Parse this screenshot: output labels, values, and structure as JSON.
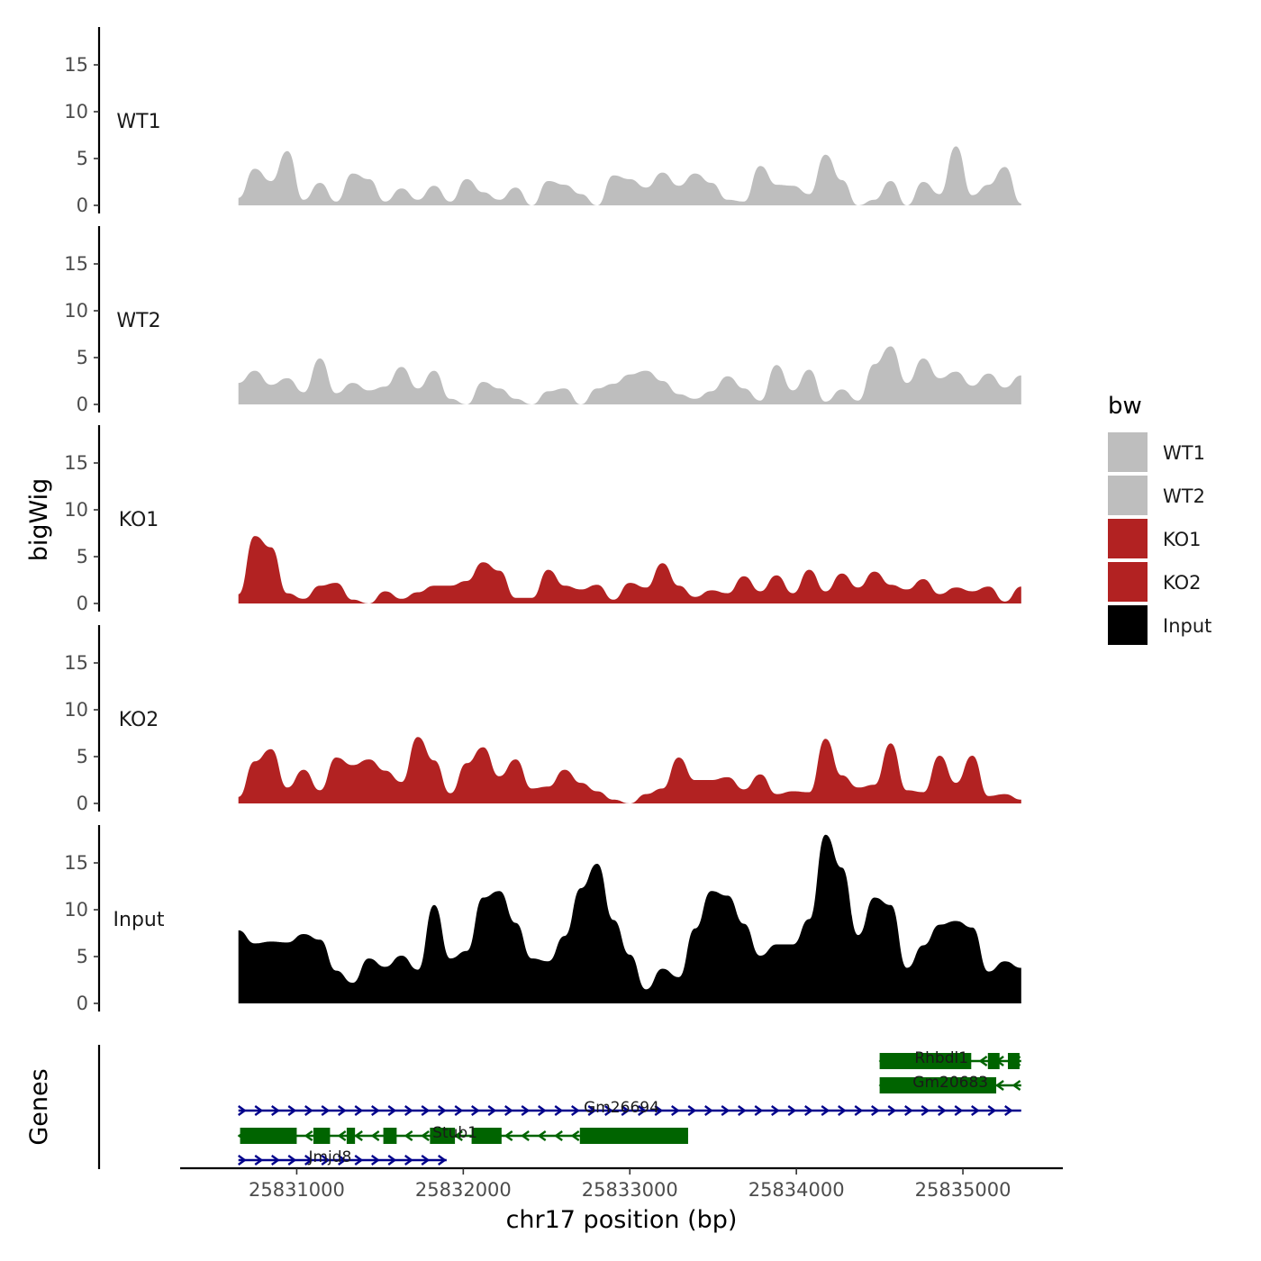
{
  "chart_data": {
    "type": "area",
    "chromosome": "chr17",
    "xlabel": "chr17 position (bp)",
    "ylabel": "bigWig",
    "genes_axis_label": "Genes",
    "xlim": [
      25830300,
      25835600
    ],
    "ylim": [
      0,
      19
    ],
    "x_ticks": [
      25831000,
      25832000,
      25833000,
      25834000,
      25835000
    ],
    "x_tick_labels": [
      "25831000",
      "25832000",
      "25833000",
      "25834000",
      "25835000"
    ],
    "y_ticks": [
      0,
      5,
      10,
      15
    ],
    "y_tick_labels": [
      "0",
      "5",
      "10",
      "15"
    ],
    "x_start": 25830650,
    "x_end": 25835350,
    "legend": {
      "title": "bw",
      "position": "right"
    },
    "series": [
      {
        "name": "WT1",
        "color": "#BEBEBE",
        "values": [
          0.8,
          3.9,
          2.6,
          5.8,
          0.6,
          2.4,
          0.4,
          3.4,
          2.8,
          0.4,
          1.8,
          0.6,
          2.1,
          0.4,
          2.8,
          1.4,
          0.6,
          1.9,
          0,
          2.6,
          2.2,
          1.2,
          0,
          3.2,
          2.8,
          1.9,
          3.5,
          2.1,
          3.4,
          2.4,
          0.6,
          0.4,
          4.2,
          2.2,
          2.1,
          1.2,
          5.4,
          2.7,
          0,
          0.6,
          2.6,
          0,
          2.5,
          1.2,
          6.3,
          1.1,
          2.2,
          4.1,
          0.2
        ]
      },
      {
        "name": "WT2",
        "color": "#BEBEBE",
        "values": [
          2.3,
          3.6,
          2.1,
          2.8,
          1.3,
          4.9,
          1.2,
          2.3,
          1.5,
          1.9,
          4.0,
          1.7,
          3.6,
          0.6,
          0,
          2.4,
          1.7,
          0.6,
          0,
          1.4,
          1.7,
          0,
          1.7,
          2.2,
          3.2,
          3.6,
          2.5,
          1.1,
          0.6,
          1.4,
          3.0,
          1.7,
          0.4,
          4.2,
          1.5,
          3.7,
          0.3,
          1.6,
          0.4,
          4.3,
          6.2,
          2.3,
          4.9,
          2.8,
          3.5,
          2.0,
          3.3,
          1.8,
          3.1
        ]
      },
      {
        "name": "KO1",
        "color": "#B22222",
        "values": [
          1.0,
          7.2,
          6.0,
          1.1,
          0.5,
          1.9,
          2.2,
          0.4,
          0,
          1.3,
          0.5,
          1.2,
          1.9,
          1.9,
          2.4,
          4.4,
          3.5,
          0.6,
          0.6,
          3.6,
          1.9,
          1.5,
          2.0,
          0.4,
          2.2,
          1.7,
          4.3,
          1.9,
          0.7,
          1.4,
          1.1,
          2.9,
          1.3,
          3.0,
          1.1,
          3.6,
          1.3,
          3.2,
          1.7,
          3.4,
          2.0,
          1.5,
          2.6,
          1.0,
          1.7,
          1.3,
          1.8,
          0.2,
          1.8
        ]
      },
      {
        "name": "KO2",
        "color": "#B22222",
        "values": [
          0.7,
          4.5,
          5.8,
          1.7,
          3.6,
          1.4,
          4.9,
          4.1,
          4.7,
          3.5,
          2.3,
          7.1,
          4.6,
          1.1,
          4.3,
          6.0,
          2.9,
          4.7,
          1.6,
          1.8,
          3.6,
          2.2,
          1.3,
          0.4,
          0,
          1.0,
          1.6,
          4.9,
          2.5,
          2.5,
          2.8,
          1.5,
          3.1,
          1.0,
          1.3,
          1.2,
          6.9,
          3.0,
          1.7,
          2.0,
          6.4,
          1.4,
          1.2,
          5.1,
          2.2,
          5.1,
          0.8,
          1.0,
          0.4
        ]
      },
      {
        "name": "Input",
        "color": "#000000",
        "values": [
          7.8,
          6.4,
          6.6,
          6.5,
          7.4,
          6.8,
          3.5,
          2.2,
          4.8,
          3.9,
          5.1,
          3.6,
          10.5,
          4.8,
          5.6,
          11.3,
          12.0,
          8.6,
          4.8,
          4.5,
          7.2,
          12.3,
          14.9,
          8.9,
          5.2,
          1.5,
          3.7,
          2.8,
          8.0,
          12.0,
          11.5,
          8.5,
          5.1,
          6.3,
          6.3,
          9.0,
          18.0,
          14.5,
          7.3,
          11.3,
          10.5,
          3.8,
          6.2,
          8.4,
          8.8,
          8.1,
          3.4,
          4.5,
          3.8
        ]
      }
    ],
    "genes": [
      {
        "name": "Rhbdl1",
        "strand": "-",
        "start": 25834500,
        "end": 25835350,
        "color": "#006400",
        "exons": [
          [
            25834500,
            25835050
          ],
          [
            25835150,
            25835220
          ],
          [
            25835270,
            25835340
          ]
        ]
      },
      {
        "name": "Gm20683",
        "strand": "-",
        "start": 25834500,
        "end": 25835350,
        "color": "#006400",
        "exons": [
          [
            25834500,
            25835200
          ]
        ]
      },
      {
        "name": "Gm26694",
        "strand": "+",
        "start": 25830650,
        "end": 25835350,
        "color": "#00008B",
        "exons": []
      },
      {
        "name": "Stub1",
        "strand": "-",
        "start": 25830650,
        "end": 25833350,
        "color": "#006400",
        "exons": [
          [
            25830660,
            25831000
          ],
          [
            25831100,
            25831200
          ],
          [
            25831300,
            25831350
          ],
          [
            25831520,
            25831600
          ],
          [
            25831800,
            25831950
          ],
          [
            25832050,
            25832230
          ],
          [
            25832700,
            25833350
          ]
        ]
      },
      {
        "name": "Jmjd8",
        "strand": "+",
        "start": 25830650,
        "end": 25831900,
        "color": "#00008B",
        "exons": []
      }
    ]
  }
}
